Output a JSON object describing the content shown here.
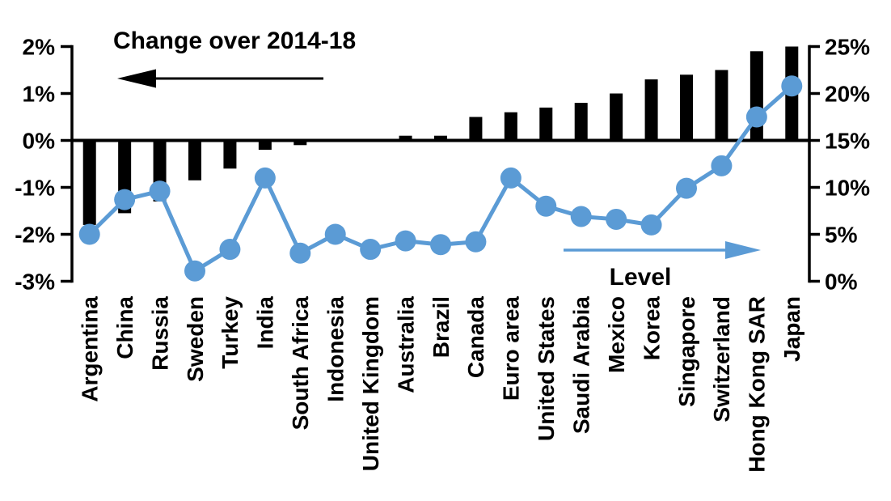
{
  "chart_data": {
    "type": "combo-bar-line-dual-axis",
    "title": "",
    "grid": "off",
    "legend": "none",
    "categories": [
      "Argentina",
      "China",
      "Russia",
      "Sweden",
      "Turkey",
      "India",
      "South Africa",
      "Indonesia",
      "United Kingdom",
      "Australia",
      "Brazil",
      "Canada",
      "Euro area",
      "United States",
      "Saudi Arabia",
      "Mexico",
      "Korea",
      "Singapore",
      "Switzerland",
      "Hong Kong SAR",
      "Japan"
    ],
    "series": [
      {
        "name": "Change over 2014-18",
        "type": "bar",
        "axis": "left",
        "color": "#000000",
        "values": [
          -1.8,
          -1.55,
          -1.3,
          -0.85,
          -0.6,
          -0.2,
          -0.1,
          0,
          0,
          0.1,
          0.1,
          0.5,
          0.6,
          0.7,
          0.8,
          1.0,
          1.3,
          1.4,
          1.5,
          1.9,
          2.0
        ]
      },
      {
        "name": "Level",
        "type": "line",
        "axis": "right",
        "color": "#5B9BD5",
        "values": [
          5.0,
          8.7,
          9.6,
          1.1,
          3.4,
          11.0,
          3.0,
          5.0,
          3.4,
          4.3,
          3.9,
          4.2,
          11.0,
          8.0,
          6.9,
          6.6,
          6.0,
          9.9,
          12.3,
          17.5,
          20.8
        ]
      }
    ],
    "left_axis": {
      "min": -3,
      "max": 2,
      "ticks": [
        {
          "value": 2,
          "label": "2%"
        },
        {
          "value": 1,
          "label": "1%"
        },
        {
          "value": 0,
          "label": "0%"
        },
        {
          "value": -1,
          "label": "-1%"
        },
        {
          "value": -2,
          "label": "-2%"
        },
        {
          "value": -3,
          "label": "-3%"
        }
      ]
    },
    "right_axis": {
      "min": 0,
      "max": 25,
      "ticks": [
        {
          "value": 25,
          "label": "25%"
        },
        {
          "value": 20,
          "label": "20%"
        },
        {
          "value": 15,
          "label": "15%"
        },
        {
          "value": 10,
          "label": "10%"
        },
        {
          "value": 5,
          "label": "5%"
        },
        {
          "value": 0,
          "label": "0%"
        }
      ]
    },
    "annotations": {
      "left": {
        "text": "Change over 2014-18",
        "arrow_direction": "left",
        "arrow_color": "#000000"
      },
      "right": {
        "text": "Level",
        "arrow_direction": "right",
        "arrow_color": "#5B9BD5"
      }
    }
  }
}
